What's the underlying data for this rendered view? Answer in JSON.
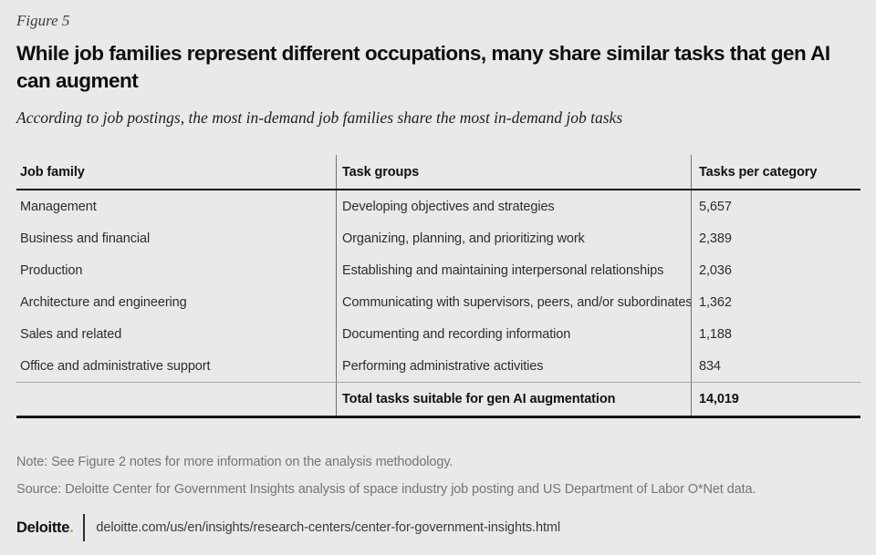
{
  "header": {
    "figure_label": "Figure 5",
    "title": "While job families represent different occupations, many share similar tasks that gen AI\ncan augment",
    "subtitle": "According to job postings, the most in-demand job families share the most in-demand job tasks"
  },
  "chart_data": {
    "type": "table",
    "figure_label": "Figure 5",
    "title": "While job families represent different occupations, many share similar tasks that gen AI can augment",
    "subtitle": "According to job postings, the most in-demand job families share the most in-demand job tasks",
    "columns": [
      "Job family",
      "Task groups",
      "Tasks per category"
    ],
    "rows": [
      [
        "Management",
        "Developing objectives and strategies",
        "5,657"
      ],
      [
        "Business and financial",
        "Organizing, planning, and prioritizing work",
        "2,389"
      ],
      [
        "Production",
        "Establishing and maintaining interpersonal relationships",
        "2,036"
      ],
      [
        "Architecture and engineering",
        "Communicating with supervisors, peers, and/or subordinates",
        "1,362"
      ],
      [
        "Sales and related",
        "Documenting and recording information",
        "1,188"
      ],
      [
        "Office and administrative support",
        "Performing administrative activities",
        "834"
      ]
    ],
    "total_row": [
      "",
      "Total tasks suitable for gen AI augmentation",
      "14,019"
    ],
    "values_numeric": [
      5657,
      2389,
      2036,
      1362,
      1188,
      834
    ],
    "total_numeric": 14019
  },
  "notes": {
    "note": "Note: See Figure 2 notes for more information on the analysis methodology.",
    "source": "Source: Deloitte Center for Government Insights analysis of space industry job posting and US Department of Labor O*Net data."
  },
  "footer": {
    "brand": "Deloitte",
    "brand_dot": ".",
    "url": "deloitte.com/us/en/insights/research-centers/center-for-government-insights.html"
  },
  "colors": {
    "background": "#e8e9ea",
    "deloitte_green": "#86bc25",
    "text_primary": "#0f0f0f",
    "text_muted": "#747577",
    "table_divider": "#6e7072",
    "rule_heavy": "#161616",
    "rule_light": "#a2a4a6"
  }
}
